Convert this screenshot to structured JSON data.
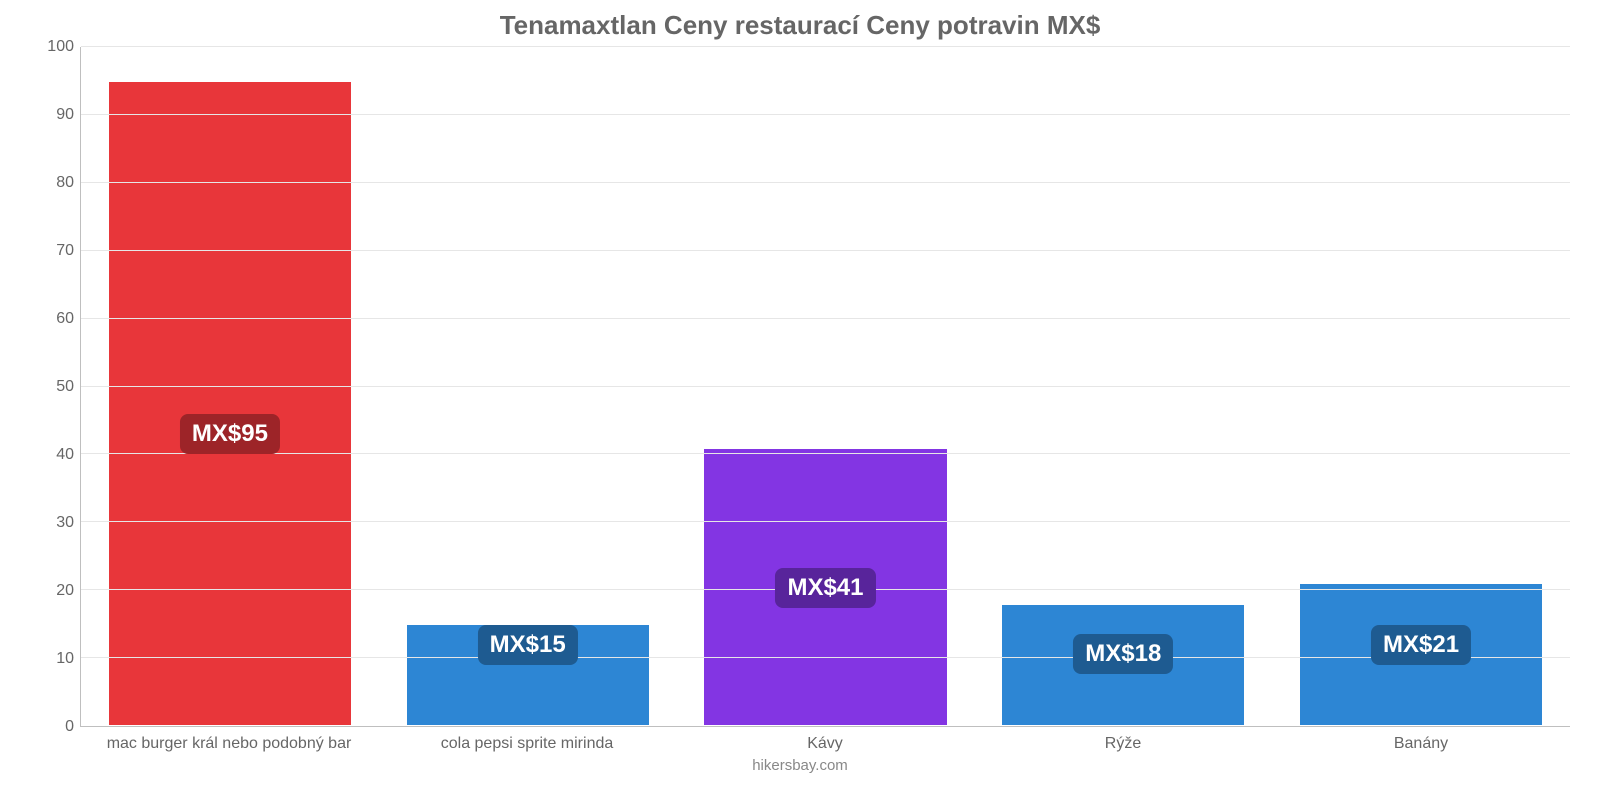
{
  "chart": {
    "type": "bar",
    "title": "Tenamaxtlan Ceny restaurací Ceny potravin MX$",
    "title_color": "#666666",
    "title_fontsize": 26,
    "footer": "hikersbay.com",
    "footer_color": "#888888",
    "background_color": "#ffffff",
    "grid_color": "#e6e6e6",
    "axis_color": "#bfbfbf",
    "tick_color": "#666666",
    "tick_fontsize": 16,
    "categories": [
      "mac burger král nebo podobný bar",
      "cola pepsi sprite mirinda",
      "Kávy",
      "Rýže",
      "Banány"
    ],
    "values": [
      95,
      15,
      41,
      18,
      21
    ],
    "value_labels": [
      "MX$95",
      "MX$15",
      "MX$41",
      "MX$18",
      "MX$21"
    ],
    "bar_colors": [
      "#e8363a",
      "#2d86d4",
      "#8335e3",
      "#2d86d4",
      "#2d86d4"
    ],
    "label_bg_colors": [
      "#9d2428",
      "#1e5b91",
      "#58249b",
      "#1e5b91",
      "#1e5b91"
    ],
    "label_fontsize": 24,
    "ylim": [
      0,
      100
    ],
    "yticks": [
      0,
      10,
      20,
      30,
      40,
      50,
      60,
      70,
      80,
      90,
      100
    ],
    "bar_width_pct": 82
  }
}
